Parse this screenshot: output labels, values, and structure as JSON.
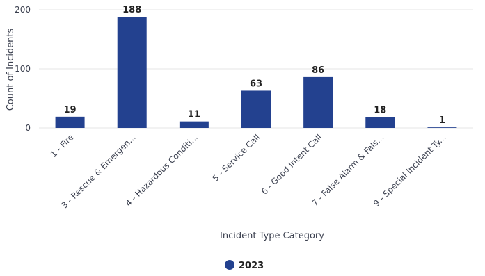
{
  "chart_data": {
    "type": "bar",
    "categories": [
      "1 - Fire",
      "3 - Rescue & Emergen...",
      "4 - Hazardous Conditi...",
      "5 - Service Call",
      "6 - Good Intent Call",
      "7 - False Alarm & Fals...",
      "9 - Special Incident Ty..."
    ],
    "series": [
      {
        "name": "2023",
        "values": [
          19,
          188,
          11,
          63,
          86,
          18,
          1
        ],
        "color": "#23418f"
      }
    ],
    "xlabel": "Incident Type Category",
    "ylabel": "Count of Incidents",
    "ylim": [
      0,
      200
    ],
    "yticks": [
      0,
      100,
      200
    ],
    "grid": true,
    "legend": "bottom-center"
  }
}
